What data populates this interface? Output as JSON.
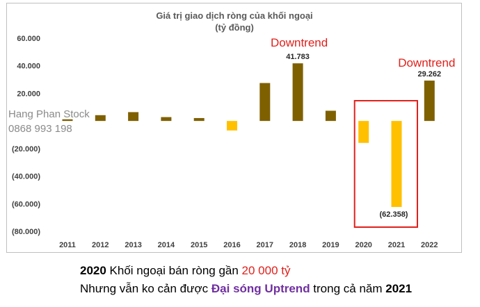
{
  "chart_data": {
    "type": "bar",
    "title": "Giá trị giao dịch ròng của khối ngoại",
    "subtitle": "(tỷ đồng)",
    "categories": [
      "2011",
      "2012",
      "2013",
      "2014",
      "2015",
      "2016",
      "2017",
      "2018",
      "2019",
      "2020",
      "2021",
      "2022"
    ],
    "values": [
      1200,
      4200,
      6400,
      2800,
      2100,
      -6900,
      27500,
      41783,
      7400,
      -15900,
      -62358,
      29262
    ],
    "data_labels": {
      "7": "41.783",
      "10": "(62.358)",
      "11": "29.262"
    },
    "ylim": [
      -80000,
      60000
    ],
    "yticks": [
      60000,
      40000,
      20000,
      0,
      -20000,
      -40000,
      -60000,
      -80000
    ],
    "ytick_labels": [
      "60.000",
      "40.000",
      "20.000",
      "",
      "(20.000)",
      "(40.000)",
      "(60.000)",
      "(80.000)"
    ],
    "colors": {
      "positive": "#7f6000",
      "negative": "#ffc000",
      "highlight_box": "#e0201b",
      "annotation": "#e0201b"
    },
    "annotations": [
      {
        "text": "Downtrend",
        "category_index": 7
      },
      {
        "text": "Downtrend",
        "category_index": 11
      }
    ],
    "highlight_range": [
      "2020",
      "2021"
    ],
    "grid": false,
    "legend": "none"
  },
  "watermark": {
    "line1": "Hang Phan Stock",
    "line2": "0868 993 198"
  },
  "caption": {
    "line1_year": "2020",
    "line1_text": " Khối ngoại bán ròng gần ",
    "line1_value": "20 000 tỷ",
    "line2_text": "Nhưng vẫn ko cản được ",
    "line2_highlight": "Đại sóng Uptrend",
    "line2_text2": " trong cả năm ",
    "line2_year": "2021"
  }
}
